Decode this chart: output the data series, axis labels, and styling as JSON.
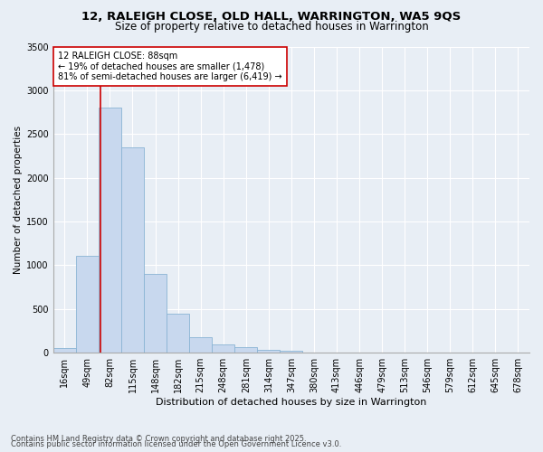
{
  "title1": "12, RALEIGH CLOSE, OLD HALL, WARRINGTON, WA5 9QS",
  "title2": "Size of property relative to detached houses in Warrington",
  "xlabel": "Distribution of detached houses by size in Warrington",
  "ylabel": "Number of detached properties",
  "categories": [
    "16sqm",
    "49sqm",
    "82sqm",
    "115sqm",
    "148sqm",
    "182sqm",
    "215sqm",
    "248sqm",
    "281sqm",
    "314sqm",
    "347sqm",
    "380sqm",
    "413sqm",
    "446sqm",
    "479sqm",
    "513sqm",
    "546sqm",
    "579sqm",
    "612sqm",
    "645sqm",
    "678sqm"
  ],
  "values": [
    55,
    1110,
    2800,
    2350,
    900,
    450,
    175,
    100,
    60,
    30,
    20,
    0,
    0,
    0,
    0,
    0,
    0,
    0,
    0,
    0,
    0
  ],
  "bar_color": "#c8d8ee",
  "bar_edgecolor": "#8ab4d4",
  "vline_color": "#cc0000",
  "vline_pos": 1.58,
  "annotation_text": "12 RALEIGH CLOSE: 88sqm\n← 19% of detached houses are smaller (1,478)\n81% of semi-detached houses are larger (6,419) →",
  "annotation_box_facecolor": "white",
  "annotation_box_edgecolor": "#cc0000",
  "ylim": [
    0,
    3500
  ],
  "yticks": [
    0,
    500,
    1000,
    1500,
    2000,
    2500,
    3000,
    3500
  ],
  "background_color": "#e8eef5",
  "grid_color": "white",
  "footer1": "Contains HM Land Registry data © Crown copyright and database right 2025.",
  "footer2": "Contains public sector information licensed under the Open Government Licence v3.0.",
  "title1_fontsize": 9.5,
  "title2_fontsize": 8.5,
  "xlabel_fontsize": 8,
  "ylabel_fontsize": 7.5,
  "tick_fontsize": 7,
  "annotation_fontsize": 7,
  "footer_fontsize": 6
}
